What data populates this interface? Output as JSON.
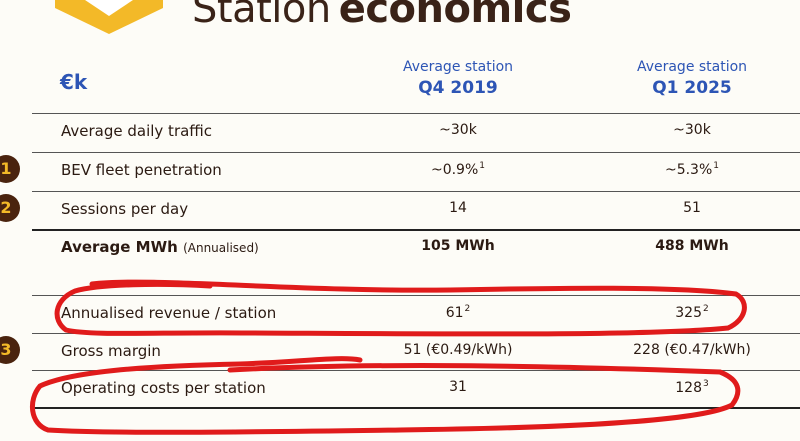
{
  "title": {
    "part1": "Station",
    "part2": "economics"
  },
  "unit": "€k",
  "columns": [
    {
      "line1": "Average station",
      "line2": "Q4 2019"
    },
    {
      "line1": "Average station",
      "line2": "Q1 2025"
    }
  ],
  "rows": [
    {
      "label": "Average daily traffic",
      "v1": "~30k",
      "v2": "~30k"
    },
    {
      "label": "BEV fleet penetration",
      "v1": "~0.9%",
      "v1_note": "1",
      "v2": "~5.3%",
      "v2_note": "1",
      "badge": "1"
    },
    {
      "label": "Sessions per day",
      "v1": "14",
      "v2": "51",
      "badge": "2"
    },
    {
      "label": "Average MWh",
      "label_small": "(Annualised)",
      "v1": "105 MWh",
      "v2": "488 MWh"
    },
    {
      "label": "Annualised revenue / station",
      "v1": "61",
      "v1_note": "2",
      "v2": "325",
      "v2_note": "2"
    },
    {
      "label": "Gross margin",
      "v1": "51 (€0.49/kWh)",
      "v2": "228 (€0.47/kWh)",
      "badge": "3"
    },
    {
      "label": "Operating costs per station",
      "v1": "31",
      "v2": "128",
      "v2_note": "3"
    }
  ],
  "colors": {
    "header_blue": "#2d55b5",
    "badge_bg": "#4a230e",
    "badge_text": "#f3b928",
    "annotation_red": "#e01b1b",
    "logo_yellow": "#f3b928"
  }
}
